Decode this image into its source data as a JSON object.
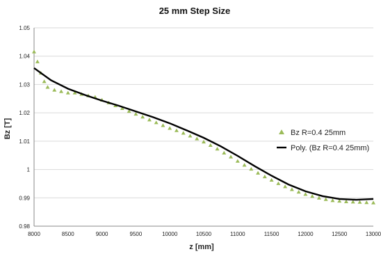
{
  "chart_data": {
    "type": "scatter",
    "title": "25 mm Step Size",
    "xlabel": "z [mm]",
    "ylabel": "Bz [T]",
    "xlim": [
      8000,
      13000
    ],
    "ylim": [
      0.98,
      1.05
    ],
    "x_ticks": [
      "8000",
      "8500",
      "9000",
      "9500",
      "10000",
      "10500",
      "11000",
      "11500",
      "12000",
      "12500",
      "13000"
    ],
    "y_ticks": [
      "0.98",
      "0.99",
      "1",
      "1.01",
      "1.02",
      "1.03",
      "1.04",
      "1.05"
    ],
    "grid": "horizontal",
    "legend_position": "right",
    "series": [
      {
        "name": "Bz R=0.4 25mm",
        "marker": "triangle",
        "color": "#9bbb59",
        "x": [
          8000,
          8050,
          8100,
          8150,
          8200,
          8300,
          8400,
          8500,
          8600,
          8700,
          8800,
          8900,
          9000,
          9100,
          9200,
          9300,
          9400,
          9500,
          9600,
          9700,
          9800,
          9900,
          10000,
          10100,
          10200,
          10300,
          10400,
          10500,
          10600,
          10700,
          10800,
          10900,
          11000,
          11100,
          11200,
          11300,
          11400,
          11500,
          11600,
          11700,
          11800,
          11900,
          12000,
          12100,
          12200,
          12300,
          12400,
          12500,
          12600,
          12700,
          12800,
          12900,
          13000
        ],
        "y": [
          1.0415,
          1.038,
          1.034,
          1.031,
          1.029,
          1.028,
          1.0275,
          1.027,
          1.027,
          1.0265,
          1.026,
          1.0255,
          1.0245,
          1.0235,
          1.0225,
          1.0215,
          1.0205,
          1.0195,
          1.0185,
          1.0175,
          1.0165,
          1.0155,
          1.0145,
          1.0137,
          1.0128,
          1.0118,
          1.0108,
          1.0097,
          1.0085,
          1.0072,
          1.0058,
          1.0044,
          1.0029,
          1.0015,
          1.0001,
          0.9987,
          0.9974,
          0.9962,
          0.995,
          0.9939,
          0.9929,
          0.992,
          0.9912,
          0.9905,
          0.9899,
          0.9894,
          0.989,
          0.9888,
          0.9886,
          0.9885,
          0.9884,
          0.9883,
          0.9882
        ]
      },
      {
        "name": "Poly. (Bz R=0.4 25mm)",
        "type": "line",
        "color": "#000000",
        "x": [
          8000,
          8250,
          8500,
          8750,
          9000,
          9250,
          9500,
          9750,
          10000,
          10250,
          10500,
          10750,
          11000,
          11250,
          11500,
          11750,
          12000,
          12250,
          12500,
          12750,
          13000
        ],
        "y": [
          1.0358,
          1.0315,
          1.0285,
          1.0263,
          1.0243,
          1.0225,
          1.0205,
          1.0185,
          1.0163,
          1.0138,
          1.0112,
          1.0082,
          1.0048,
          1.0012,
          0.9978,
          0.9947,
          0.9923,
          0.9906,
          0.9896,
          0.9893,
          0.9896
        ]
      }
    ]
  }
}
